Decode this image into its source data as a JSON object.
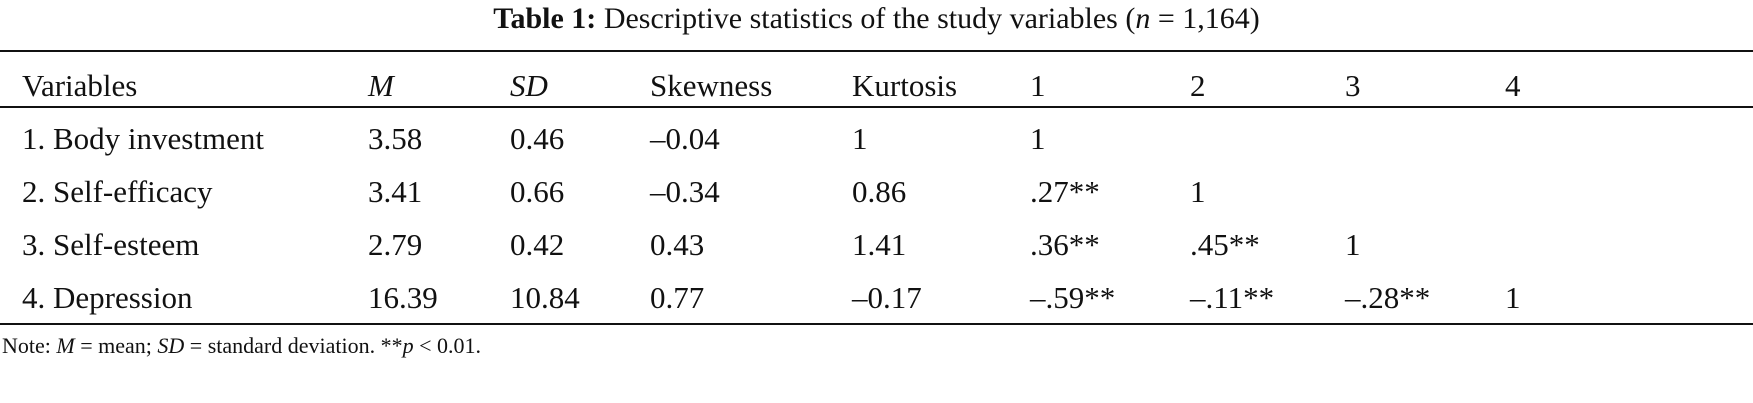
{
  "title": {
    "label": "Table 1:",
    "parts": [
      {
        "text": " Descriptive statistics of the study variables (",
        "italic": false
      },
      {
        "text": "n",
        "italic": true
      },
      {
        "text": " = 1,164)",
        "italic": false
      }
    ]
  },
  "table": {
    "header": [
      {
        "text": "Variables",
        "italic": false
      },
      {
        "text": "M",
        "italic": true
      },
      {
        "text": "SD",
        "italic": true
      },
      {
        "text": "Skewness",
        "italic": false
      },
      {
        "text": "Kurtosis",
        "italic": false
      },
      {
        "text": "1",
        "italic": false
      },
      {
        "text": "2",
        "italic": false
      },
      {
        "text": "3",
        "italic": false
      },
      {
        "text": "4",
        "italic": false
      }
    ],
    "rows": [
      [
        "1. Body investment",
        "3.58",
        "0.46",
        "–0.04",
        "1",
        "1"
      ],
      [
        "2. Self-efficacy",
        "3.41",
        "0.66",
        "–0.34",
        "0.86",
        ".27**",
        "1"
      ],
      [
        "3. Self-esteem",
        "2.79",
        "0.42",
        "0.43",
        "1.41",
        ".36**",
        ".45**",
        "1"
      ],
      [
        "4. Depression",
        "16.39",
        "10.84",
        "0.77",
        "–0.17",
        "–.59**",
        "–.11**",
        "–.28**",
        "1"
      ]
    ]
  },
  "note": {
    "parts": [
      {
        "text": "Note: ",
        "italic": false
      },
      {
        "text": "M",
        "italic": true
      },
      {
        "text": " = mean; ",
        "italic": false
      },
      {
        "text": "SD",
        "italic": true
      },
      {
        "text": " = standard deviation. **",
        "italic": false
      },
      {
        "text": "p",
        "italic": true
      },
      {
        "text": " < 0.01.",
        "italic": false
      }
    ]
  }
}
